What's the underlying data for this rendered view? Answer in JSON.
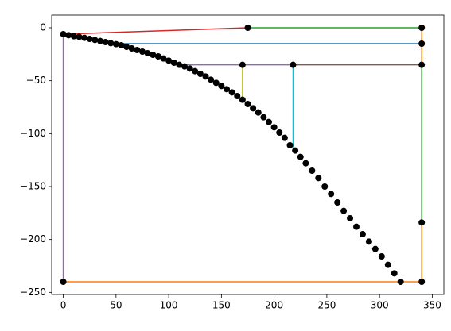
{
  "chart_data": {
    "type": "line",
    "xlim": [
      -11,
      361
    ],
    "ylim": [
      -252,
      12
    ],
    "xticks": [
      0,
      50,
      100,
      150,
      200,
      250,
      300,
      350
    ],
    "yticks": [
      {
        "value": 0,
        "label": "0"
      },
      {
        "value": -50,
        "label": "−50"
      },
      {
        "value": -100,
        "label": "−100"
      },
      {
        "value": -150,
        "label": "−150"
      },
      {
        "value": -200,
        "label": "−200"
      },
      {
        "value": -250,
        "label": "−250"
      }
    ],
    "series": [
      {
        "color": "#1f77b4",
        "x": [
          48,
          340
        ],
        "y": [
          -15,
          -15
        ]
      },
      {
        "color": "#ff7f0e",
        "x": [
          0,
          340,
          340,
          null,
          340,
          340
        ],
        "y": [
          -240,
          -240,
          -184,
          null,
          0,
          -35
        ]
      },
      {
        "color": "#2ca02c",
        "x": [
          175,
          340,
          null,
          340,
          340
        ],
        "y": [
          0,
          0,
          null,
          -35,
          -184
        ]
      },
      {
        "color": "#d62728",
        "x": [
          0,
          175
        ],
        "y": [
          -6,
          0
        ]
      },
      {
        "color": "#9467bd",
        "x": [
          0,
          0,
          null,
          112,
          218
        ],
        "y": [
          -6,
          -240,
          null,
          -35,
          -35
        ]
      },
      {
        "color": "#8c564b",
        "x": [
          218,
          340
        ],
        "y": [
          -35,
          -35
        ]
      },
      {
        "color": "#bcbd22",
        "x": [
          170,
          170
        ],
        "y": [
          -35,
          -68
        ]
      },
      {
        "color": "#17becf",
        "x": [
          218,
          218
        ],
        "y": [
          -35,
          -113
        ]
      }
    ],
    "markers": {
      "color": "#000000",
      "x": [
        0,
        5,
        10,
        15,
        20,
        25,
        30,
        35,
        40,
        45,
        50,
        55,
        60,
        65,
        70,
        75,
        80,
        85,
        90,
        95,
        100,
        105,
        110,
        115,
        120,
        125,
        130,
        135,
        140,
        145,
        150,
        155,
        160,
        165,
        170,
        175,
        180,
        185,
        190,
        195,
        200,
        205,
        210,
        215,
        220,
        225,
        230,
        236,
        242,
        248,
        254,
        260,
        266,
        272,
        278,
        284,
        290,
        296,
        302,
        308,
        314,
        320,
        175,
        340,
        340,
        340,
        340,
        340,
        0,
        170,
        218
      ],
      "y": [
        -6,
        -7,
        -8,
        -8.5,
        -9.5,
        -10.5,
        -11.5,
        -12.5,
        -13.5,
        -14.5,
        -15.5,
        -16.5,
        -18,
        -19.5,
        -21,
        -22.5,
        -24,
        -25.5,
        -27,
        -29,
        -31,
        -33,
        -35,
        -36.5,
        -38.5,
        -41,
        -43.5,
        -46,
        -49,
        -52,
        -55,
        -58,
        -61,
        -64.5,
        -68,
        -72,
        -76,
        -80,
        -84.5,
        -89,
        -94,
        -99,
        -104,
        -111,
        -116,
        -122,
        -128,
        -135,
        -142,
        -150,
        -157,
        -165,
        -173,
        -180,
        -188,
        -195,
        -202,
        -209,
        -216,
        -224,
        -232,
        -240,
        0,
        0,
        -15,
        -35,
        -184,
        -240,
        -240,
        -35,
        -35
      ]
    }
  }
}
